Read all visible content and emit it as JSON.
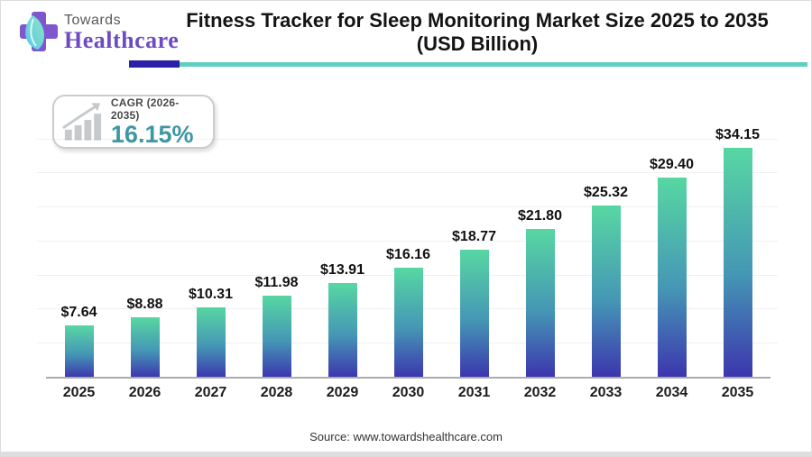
{
  "logo": {
    "towards": "Towards",
    "healthcare": "Healthcare"
  },
  "header": {
    "title_line1": "Fitness Tracker for Sleep Monitoring Market Size 2025 to 2035",
    "title_line2": "(USD Billion)"
  },
  "cagr": {
    "label": "CAGR (2026-2035)",
    "value": "16.15%"
  },
  "chart_data": {
    "type": "bar",
    "title": "Fitness Tracker for Sleep Monitoring Market Size 2025 to 2035 (USD Billion)",
    "categories": [
      "2025",
      "2026",
      "2027",
      "2028",
      "2029",
      "2030",
      "2031",
      "2032",
      "2033",
      "2034",
      "2035"
    ],
    "values": [
      7.64,
      8.88,
      10.31,
      11.98,
      13.91,
      16.16,
      18.77,
      21.8,
      25.32,
      29.4,
      34.15
    ],
    "labels": [
      "$7.64",
      "$8.88",
      "$10.31",
      "$11.98",
      "$13.91",
      "$16.16",
      "$18.77",
      "$21.80",
      "$25.32",
      "$29.40",
      "$34.15"
    ],
    "xlabel": "",
    "ylabel": "",
    "ylim": [
      0,
      36.8
    ],
    "gridline_step": 5,
    "grid": true,
    "legend": "none",
    "bar_gradient_top": "#57d7a2",
    "bar_gradient_mid": "#4597b5",
    "bar_gradient_bottom": "#3c35ae"
  },
  "footer": {
    "source": "Source: www.towardshealthcare.com"
  },
  "colors": {
    "accent_indigo": "#2b21a6",
    "accent_teal": "#5fd0c0",
    "cagr_teal": "#3e97a3",
    "logo_purple": "#6d4cc3",
    "icon_gray": "#c6cacd"
  }
}
